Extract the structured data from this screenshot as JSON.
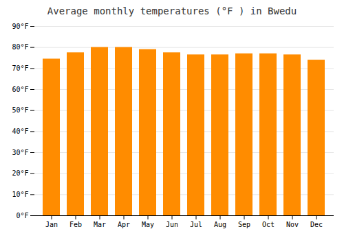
{
  "chart_data": {
    "type": "bar",
    "title": "Average monthly temperatures (°F ) in Bwedu",
    "categories": [
      "Jan",
      "Feb",
      "Mar",
      "Apr",
      "May",
      "Jun",
      "Jul",
      "Aug",
      "Sep",
      "Oct",
      "Nov",
      "Dec"
    ],
    "values": [
      74.5,
      77.5,
      80.0,
      80.0,
      79.0,
      77.5,
      76.5,
      76.5,
      77.0,
      77.0,
      76.5,
      74.0
    ],
    "color": "#FF8C00",
    "ylim": [
      0,
      90
    ],
    "yticks": [
      {
        "value": 0,
        "label": "0°F"
      },
      {
        "value": 10,
        "label": "10°F"
      },
      {
        "value": 20,
        "label": "20°F"
      },
      {
        "value": 30,
        "label": "30°F"
      },
      {
        "value": 40,
        "label": "40°F"
      },
      {
        "value": 50,
        "label": "50°F"
      },
      {
        "value": 60,
        "label": "60°F"
      },
      {
        "value": 70,
        "label": "70°F"
      },
      {
        "value": 80,
        "label": "80°F"
      },
      {
        "value": 90,
        "label": "90°F"
      }
    ],
    "grid": true
  }
}
